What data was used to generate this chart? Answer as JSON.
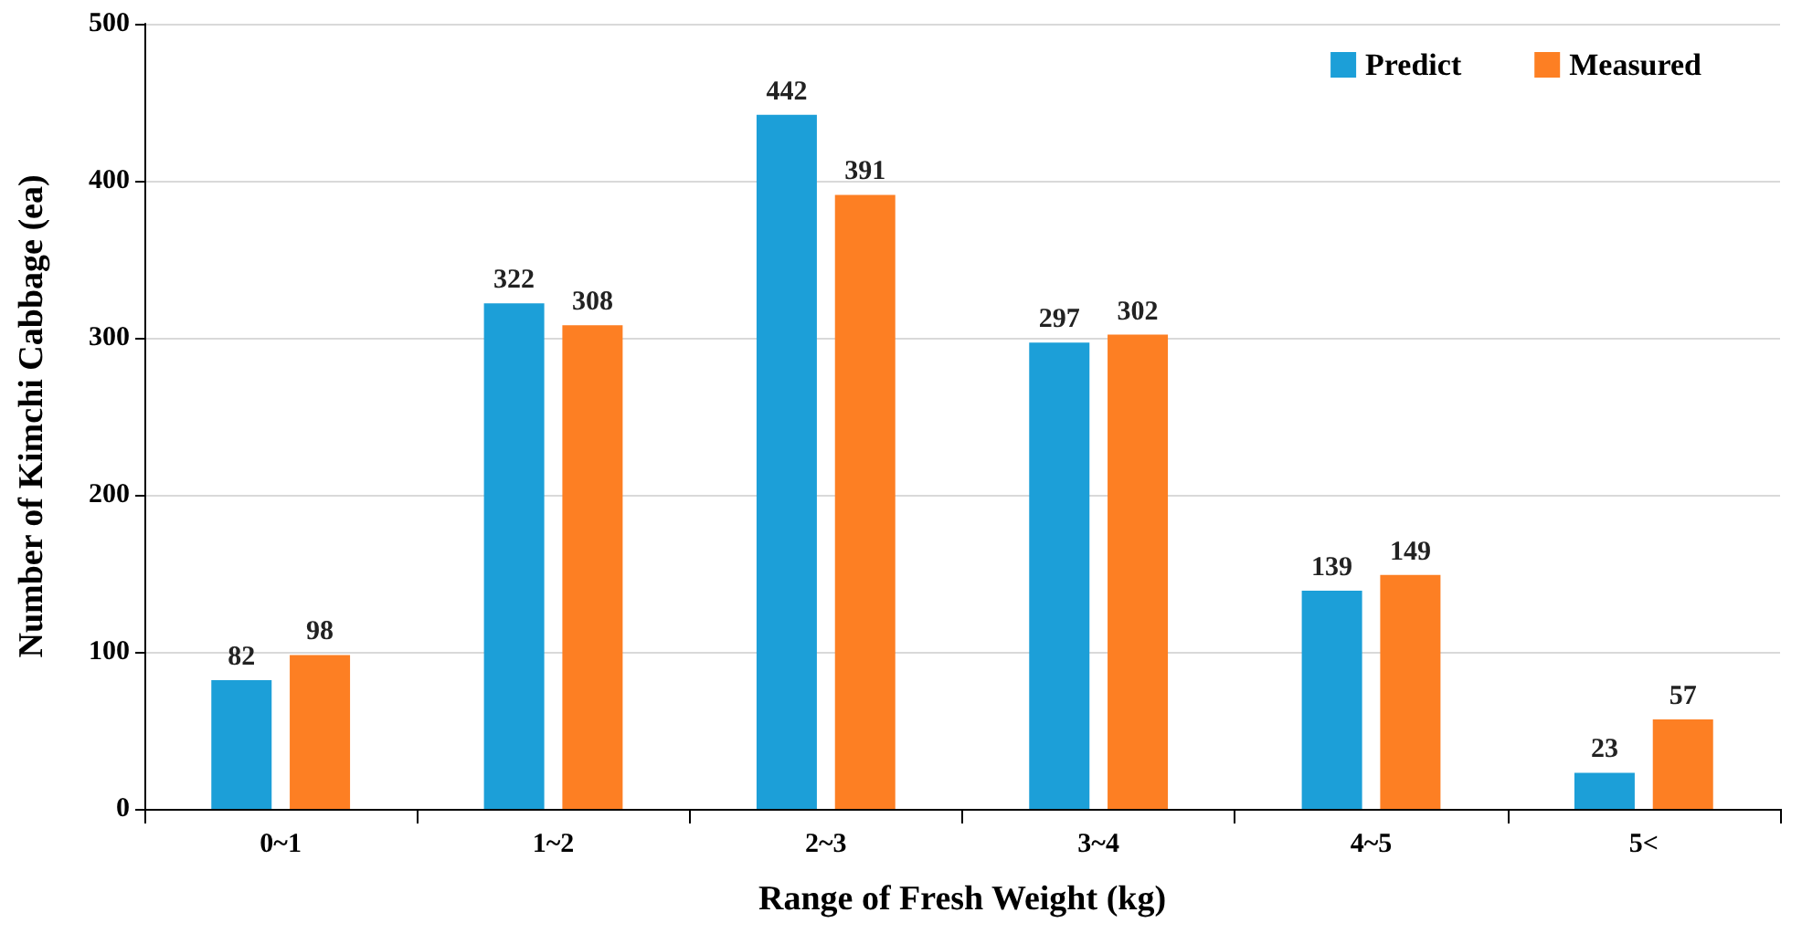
{
  "chart_data": {
    "type": "bar",
    "xlabel": "Range of Fresh Weight (kg)",
    "ylabel": "Number of Kimchi Cabbage (ea)",
    "categories": [
      "0~1",
      "1~2",
      "2~3",
      "3~4",
      "4~5",
      "5<"
    ],
    "series": [
      {
        "name": "Predict",
        "color": "#1c9fd8",
        "values": [
          82,
          322,
          442,
          297,
          139,
          23
        ]
      },
      {
        "name": "Measured",
        "color": "#fd7f23",
        "values": [
          98,
          308,
          391,
          302,
          149,
          57
        ]
      }
    ],
    "ylim": [
      0,
      500
    ],
    "yticks": [
      0,
      100,
      200,
      300,
      400,
      500
    ],
    "grid": "y",
    "legend": "top right",
    "data_labels": true
  }
}
